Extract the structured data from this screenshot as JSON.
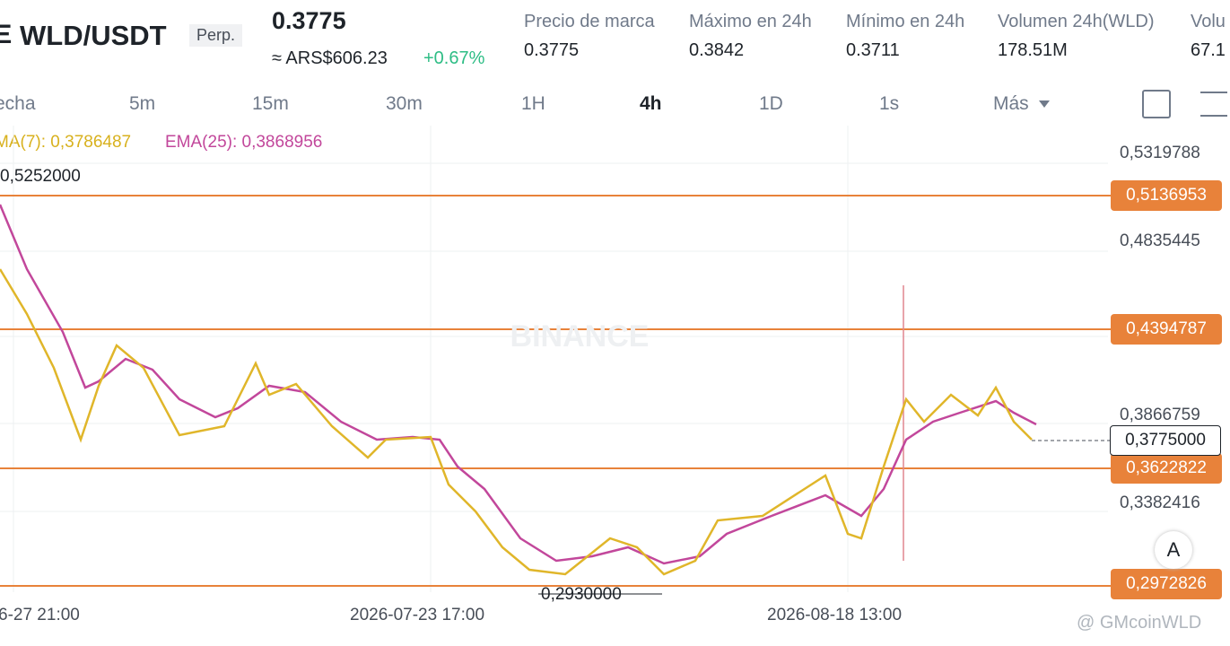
{
  "header": {
    "pair": "WLD/USDT",
    "badge": "Perp.",
    "price": "0.3775",
    "fiat": "≈ ARS$606.23",
    "change": "+0.67%",
    "stats": [
      {
        "label": "Precio de marca",
        "value": "0.3775"
      },
      {
        "label": "Máximo en 24h",
        "value": "0.3842"
      },
      {
        "label": "Mínimo en 24h",
        "value": "0.3711"
      },
      {
        "label": "Volumen 24h(WLD)",
        "value": "178.51M"
      },
      {
        "label": "Volu",
        "value": "67.1"
      }
    ]
  },
  "toolbar": {
    "intervals": [
      "echa",
      "5m",
      "15m",
      "30m",
      "1H",
      "4h",
      "1D",
      "1s",
      "Más"
    ]
  },
  "indicators": [
    "MA(7): 0,3786487",
    "EMA(25): 0,3868956"
  ],
  "price_axis": [
    "0,5319788",
    "0,4835445",
    "0,3866759",
    "0,3382416"
  ],
  "levels": [
    "0,5136953",
    "0,4394787",
    "0,3622822",
    "0,2972826"
  ],
  "current_price": "0,3775000",
  "high_marker": "0,5252000",
  "low_marker": "0,2930000",
  "time_axis": [
    "6-27 21:00",
    "2026-07-23 17:00",
    "2026-08-18 13:00"
  ],
  "watermark": "BINANCE",
  "scale_mode": "A",
  "credit": "@ GMcoinWLD"
}
